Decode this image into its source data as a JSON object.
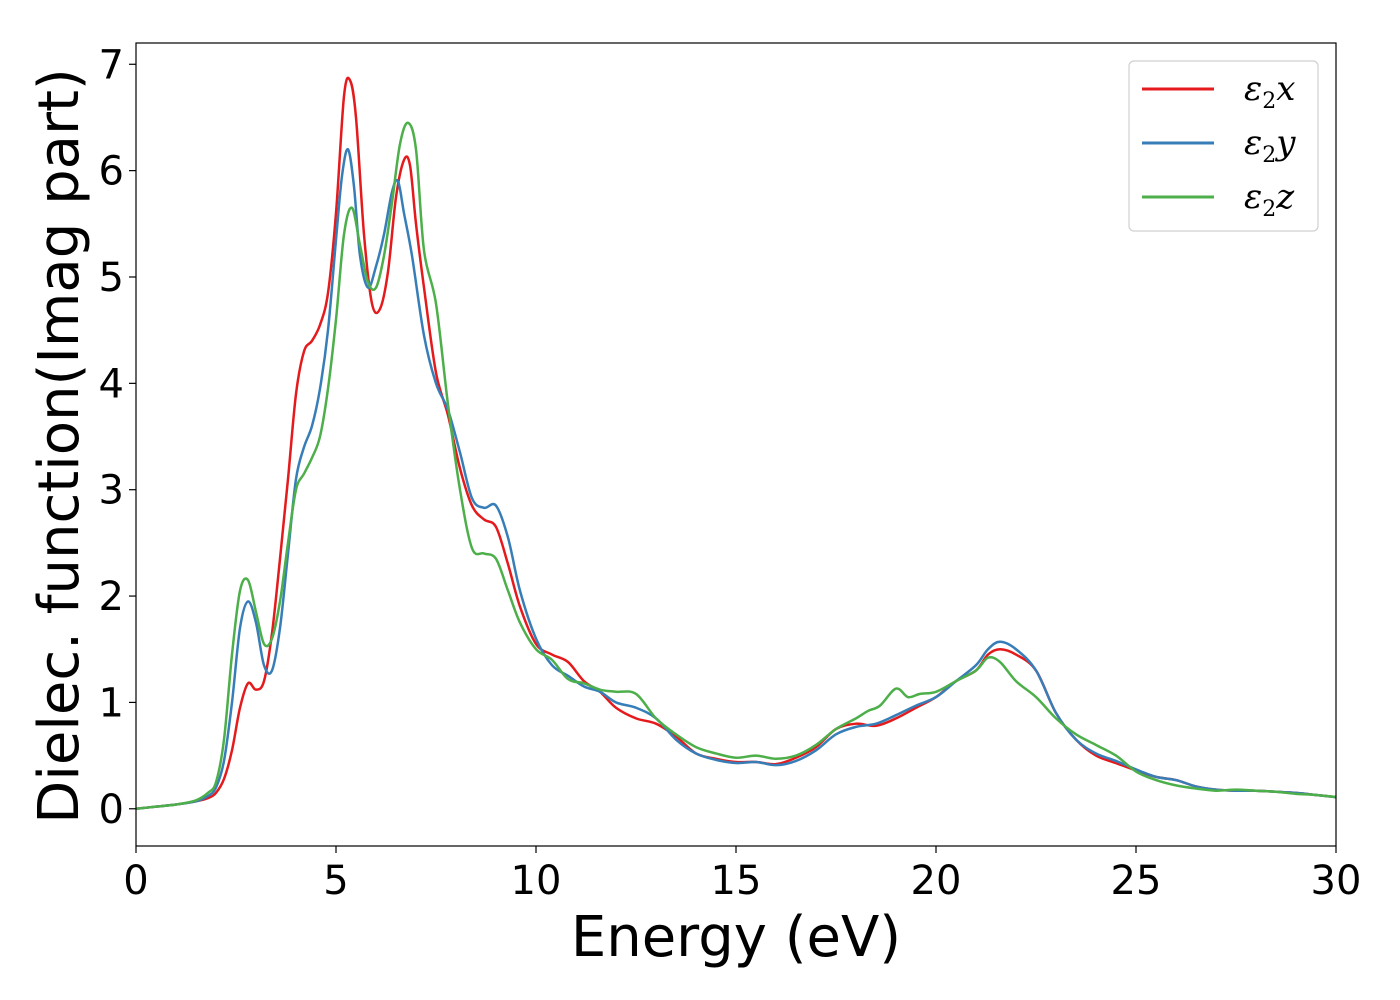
{
  "chart_data": {
    "type": "line",
    "title": "",
    "xlabel": "Energy (eV)",
    "ylabel": "Dielec. function(Imag part)",
    "xlim": [
      0,
      30
    ],
    "ylim": [
      -0.35,
      7.2
    ],
    "xticks": [
      0,
      5,
      10,
      15,
      20,
      25,
      30
    ],
    "yticks": [
      0,
      1,
      2,
      3,
      4,
      5,
      6,
      7
    ],
    "grid": false,
    "legend_position": "top-right",
    "series": [
      {
        "name": "ε₂x",
        "legend_base": "ε",
        "legend_sub": "2",
        "legend_var": "x",
        "color": "#e41a1c",
        "x": [
          0,
          0.5,
          1,
          1.5,
          1.8,
          2,
          2.2,
          2.4,
          2.6,
          2.8,
          3,
          3.2,
          3.4,
          3.6,
          3.8,
          4,
          4.2,
          4.4,
          4.6,
          4.8,
          5,
          5.2,
          5.35,
          5.5,
          5.7,
          5.9,
          6.1,
          6.3,
          6.5,
          6.7,
          6.85,
          7,
          7.2,
          7.5,
          7.8,
          8.1,
          8.4,
          8.7,
          9,
          9.3,
          9.6,
          10,
          10.4,
          10.8,
          11.2,
          11.6,
          12,
          12.5,
          13,
          13.5,
          14,
          14.5,
          15,
          15.5,
          16,
          16.5,
          17,
          17.5,
          18,
          18.5,
          19,
          19.5,
          20,
          20.5,
          21,
          21.3,
          21.6,
          22,
          22.5,
          23,
          23.5,
          24,
          24.5,
          25,
          25.5,
          26,
          26.5,
          27,
          27.5,
          28,
          28.5,
          29,
          29.5,
          30
        ],
        "y": [
          0,
          0.02,
          0.04,
          0.07,
          0.1,
          0.15,
          0.28,
          0.55,
          0.95,
          1.18,
          1.12,
          1.2,
          1.65,
          2.35,
          3.1,
          3.9,
          4.3,
          4.4,
          4.55,
          4.85,
          5.6,
          6.7,
          6.85,
          6.5,
          5.4,
          4.75,
          4.7,
          5.05,
          5.75,
          6.1,
          6.05,
          5.5,
          4.9,
          4.1,
          3.7,
          3.2,
          2.85,
          2.72,
          2.65,
          2.3,
          1.9,
          1.55,
          1.45,
          1.38,
          1.2,
          1.1,
          0.95,
          0.85,
          0.8,
          0.68,
          0.52,
          0.47,
          0.44,
          0.44,
          0.42,
          0.48,
          0.58,
          0.75,
          0.8,
          0.78,
          0.85,
          0.95,
          1.05,
          1.2,
          1.3,
          1.45,
          1.5,
          1.45,
          1.3,
          0.9,
          0.65,
          0.5,
          0.43,
          0.36,
          0.3,
          0.27,
          0.21,
          0.18,
          0.17,
          0.17,
          0.16,
          0.15,
          0.13,
          0.11
        ]
      },
      {
        "name": "ε₂y",
        "legend_base": "ε",
        "legend_sub": "2",
        "legend_var": "y",
        "color": "#377eb8",
        "x": [
          0,
          0.5,
          1,
          1.5,
          1.8,
          2,
          2.2,
          2.4,
          2.6,
          2.8,
          3,
          3.2,
          3.4,
          3.6,
          3.8,
          4,
          4.2,
          4.4,
          4.6,
          4.8,
          5,
          5.15,
          5.3,
          5.45,
          5.6,
          5.8,
          6,
          6.2,
          6.4,
          6.55,
          6.7,
          6.9,
          7.2,
          7.5,
          7.8,
          8.1,
          8.4,
          8.7,
          9,
          9.3,
          9.6,
          10,
          10.4,
          10.8,
          11.2,
          11.6,
          12,
          12.5,
          13,
          13.5,
          14,
          14.5,
          15,
          15.5,
          16,
          16.5,
          17,
          17.5,
          18,
          18.5,
          19,
          19.5,
          20,
          20.5,
          21,
          21.3,
          21.6,
          22,
          22.5,
          23,
          23.5,
          24,
          24.5,
          25,
          25.5,
          26,
          26.5,
          27,
          27.5,
          28,
          28.5,
          29,
          29.5,
          30
        ],
        "y": [
          0,
          0.02,
          0.04,
          0.07,
          0.12,
          0.2,
          0.45,
          1.0,
          1.7,
          1.95,
          1.75,
          1.35,
          1.3,
          1.7,
          2.4,
          3.1,
          3.4,
          3.6,
          3.95,
          4.5,
          5.35,
          5.95,
          6.2,
          5.85,
          5.2,
          4.9,
          5.1,
          5.4,
          5.8,
          5.9,
          5.6,
          5.2,
          4.45,
          4.0,
          3.75,
          3.35,
          2.92,
          2.83,
          2.85,
          2.55,
          2.05,
          1.6,
          1.35,
          1.25,
          1.15,
          1.1,
          1.0,
          0.95,
          0.85,
          0.65,
          0.52,
          0.46,
          0.43,
          0.44,
          0.41,
          0.45,
          0.55,
          0.7,
          0.77,
          0.8,
          0.88,
          0.97,
          1.05,
          1.2,
          1.35,
          1.5,
          1.57,
          1.5,
          1.3,
          0.9,
          0.65,
          0.52,
          0.45,
          0.37,
          0.3,
          0.27,
          0.21,
          0.18,
          0.17,
          0.17,
          0.16,
          0.15,
          0.13,
          0.11
        ]
      },
      {
        "name": "ε₂z",
        "legend_base": "ε",
        "legend_sub": "2",
        "legend_var": "z",
        "color": "#4daf4a",
        "x": [
          0,
          0.5,
          1,
          1.5,
          1.8,
          2,
          2.2,
          2.4,
          2.6,
          2.8,
          3,
          3.2,
          3.4,
          3.6,
          3.8,
          4,
          4.2,
          4.4,
          4.6,
          4.8,
          5,
          5.2,
          5.4,
          5.6,
          5.8,
          6,
          6.2,
          6.4,
          6.6,
          6.8,
          7,
          7.2,
          7.5,
          7.8,
          8.1,
          8.4,
          8.7,
          9,
          9.3,
          9.6,
          10,
          10.4,
          10.8,
          11.2,
          11.6,
          12,
          12.5,
          13,
          13.5,
          14,
          14.5,
          15,
          15.5,
          16,
          16.5,
          17,
          17.5,
          18,
          18.3,
          18.6,
          19,
          19.3,
          19.6,
          20,
          20.5,
          21,
          21.3,
          21.6,
          22,
          22.5,
          23,
          23.5,
          24,
          24.5,
          25,
          25.5,
          26,
          26.5,
          27,
          27.5,
          28,
          28.5,
          29,
          29.5,
          30
        ],
        "y": [
          0,
          0.02,
          0.04,
          0.08,
          0.15,
          0.25,
          0.65,
          1.45,
          2.05,
          2.15,
          1.85,
          1.55,
          1.6,
          1.95,
          2.5,
          3.0,
          3.15,
          3.3,
          3.5,
          3.95,
          4.6,
          5.4,
          5.65,
          5.3,
          4.95,
          4.9,
          5.2,
          5.7,
          6.25,
          6.45,
          6.2,
          5.25,
          4.75,
          3.8,
          3.0,
          2.45,
          2.4,
          2.35,
          2.05,
          1.75,
          1.5,
          1.4,
          1.22,
          1.18,
          1.12,
          1.1,
          1.08,
          0.85,
          0.7,
          0.58,
          0.52,
          0.48,
          0.5,
          0.47,
          0.5,
          0.6,
          0.75,
          0.85,
          0.92,
          0.97,
          1.13,
          1.05,
          1.08,
          1.1,
          1.2,
          1.3,
          1.42,
          1.38,
          1.2,
          1.05,
          0.85,
          0.7,
          0.6,
          0.5,
          0.35,
          0.27,
          0.22,
          0.19,
          0.17,
          0.18,
          0.17,
          0.16,
          0.14,
          0.13,
          0.11
        ]
      }
    ]
  }
}
